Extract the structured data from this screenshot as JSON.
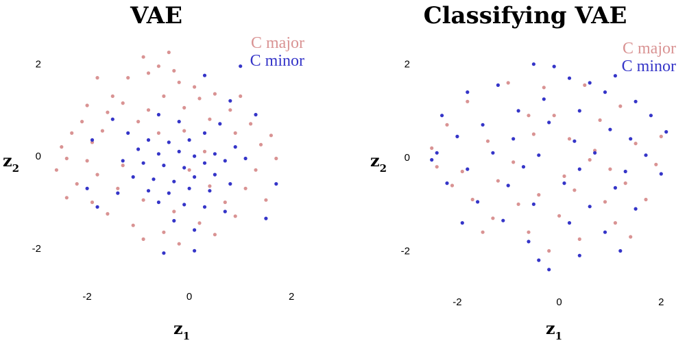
{
  "chart_data": [
    {
      "type": "scatter",
      "title": "VAE",
      "xlabel": "z",
      "xlabel_sub": "1",
      "ylabel": "z",
      "ylabel_sub": "2",
      "xlim": [
        -2.9,
        2.4
      ],
      "ylim": [
        -2.55,
        2.45
      ],
      "xticks": [
        -2,
        0,
        2
      ],
      "yticks": [
        -2,
        0,
        2
      ],
      "grid": false,
      "legend_position": "top-right",
      "series": [
        {
          "name": "C major",
          "color": "#d99393",
          "points": [
            [
              -0.4,
              2.25
            ],
            [
              -0.9,
              2.15
            ],
            [
              -0.6,
              1.95
            ],
            [
              -0.8,
              1.8
            ],
            [
              -0.3,
              1.85
            ],
            [
              -1.2,
              1.7
            ],
            [
              -1.8,
              1.7
            ],
            [
              -0.2,
              1.6
            ],
            [
              0.1,
              1.5
            ],
            [
              -1.5,
              1.3
            ],
            [
              0.5,
              1.35
            ],
            [
              -0.5,
              1.3
            ],
            [
              0.2,
              1.25
            ],
            [
              -2.0,
              1.1
            ],
            [
              1.0,
              1.3
            ],
            [
              -1.3,
              1.15
            ],
            [
              -0.1,
              1.05
            ],
            [
              0.8,
              1.0
            ],
            [
              -1.6,
              0.95
            ],
            [
              -0.8,
              1.0
            ],
            [
              -2.1,
              0.75
            ],
            [
              -1.0,
              0.75
            ],
            [
              0.4,
              0.8
            ],
            [
              1.2,
              0.7
            ],
            [
              -2.3,
              0.5
            ],
            [
              -1.7,
              0.55
            ],
            [
              0.9,
              0.5
            ],
            [
              1.6,
              0.45
            ],
            [
              -2.5,
              0.2
            ],
            [
              -1.9,
              0.3
            ],
            [
              1.4,
              0.25
            ],
            [
              -2.4,
              -0.05
            ],
            [
              -2.0,
              -0.1
            ],
            [
              1.7,
              -0.05
            ],
            [
              -2.6,
              -0.3
            ],
            [
              -1.8,
              -0.4
            ],
            [
              1.3,
              -0.3
            ],
            [
              -2.2,
              -0.6
            ],
            [
              -1.4,
              -0.7
            ],
            [
              0.4,
              -0.65
            ],
            [
              1.1,
              -0.7
            ],
            [
              -2.4,
              -0.9
            ],
            [
              -1.9,
              -1.0
            ],
            [
              -0.9,
              -0.95
            ],
            [
              0.7,
              -1.0
            ],
            [
              1.5,
              -0.95
            ],
            [
              -1.6,
              -1.25
            ],
            [
              -0.3,
              -1.2
            ],
            [
              0.9,
              -1.3
            ],
            [
              -1.1,
              -1.5
            ],
            [
              0.2,
              -1.45
            ],
            [
              -0.5,
              -1.65
            ],
            [
              0.5,
              -1.7
            ],
            [
              -0.2,
              -1.9
            ],
            [
              -0.9,
              -1.8
            ],
            [
              -1.3,
              -0.2
            ],
            [
              -0.6,
              0.5
            ],
            [
              0.0,
              -0.3
            ],
            [
              0.3,
              0.1
            ],
            [
              -0.1,
              0.55
            ]
          ]
        },
        {
          "name": "C minor",
          "color": "#3535c8",
          "points": [
            [
              1.0,
              1.95
            ],
            [
              0.3,
              1.75
            ],
            [
              -0.6,
              0.9
            ],
            [
              -0.2,
              0.75
            ],
            [
              0.6,
              0.7
            ],
            [
              -1.2,
              0.5
            ],
            [
              -0.8,
              0.35
            ],
            [
              -0.4,
              0.3
            ],
            [
              0.0,
              0.35
            ],
            [
              0.3,
              0.5
            ],
            [
              -1.0,
              0.15
            ],
            [
              -0.6,
              0.05
            ],
            [
              -0.2,
              0.1
            ],
            [
              0.1,
              0.0
            ],
            [
              0.5,
              0.05
            ],
            [
              0.9,
              0.2
            ],
            [
              -1.3,
              -0.1
            ],
            [
              -0.9,
              -0.15
            ],
            [
              -0.5,
              -0.2
            ],
            [
              -0.1,
              -0.25
            ],
            [
              0.3,
              -0.15
            ],
            [
              0.7,
              -0.1
            ],
            [
              1.1,
              -0.05
            ],
            [
              -1.1,
              -0.45
            ],
            [
              -0.7,
              -0.5
            ],
            [
              -0.3,
              -0.55
            ],
            [
              0.1,
              -0.45
            ],
            [
              0.5,
              -0.4
            ],
            [
              -0.8,
              -0.75
            ],
            [
              -0.4,
              -0.8
            ],
            [
              0.0,
              -0.7
            ],
            [
              0.4,
              -0.75
            ],
            [
              0.8,
              -0.6
            ],
            [
              -0.6,
              -1.0
            ],
            [
              -0.1,
              -1.05
            ],
            [
              0.3,
              -1.1
            ],
            [
              0.7,
              -1.2
            ],
            [
              -1.8,
              -1.1
            ],
            [
              -0.3,
              -1.4
            ],
            [
              0.1,
              -1.6
            ],
            [
              -0.5,
              -2.1
            ],
            [
              0.1,
              -2.05
            ],
            [
              -2.0,
              -0.7
            ],
            [
              1.5,
              -1.35
            ],
            [
              1.7,
              -0.6
            ],
            [
              -1.5,
              0.8
            ],
            [
              0.8,
              1.2
            ],
            [
              -1.9,
              0.35
            ],
            [
              1.3,
              0.9
            ],
            [
              -1.4,
              -0.8
            ]
          ]
        }
      ]
    },
    {
      "type": "scatter",
      "title": "Classifying VAE",
      "xlabel": "z",
      "xlabel_sub": "1",
      "ylabel": "z",
      "ylabel_sub": "2",
      "xlim": [
        -2.9,
        2.4
      ],
      "ylim": [
        -2.55,
        2.45
      ],
      "xticks": [
        -2,
        0,
        2
      ],
      "yticks": [
        -2,
        0,
        2
      ],
      "grid": false,
      "legend_position": "top-right",
      "series": [
        {
          "name": "C major",
          "color": "#d99393",
          "points": [
            [
              -1.0,
              1.6
            ],
            [
              -0.3,
              1.5
            ],
            [
              0.5,
              1.55
            ],
            [
              -1.8,
              1.2
            ],
            [
              1.2,
              1.1
            ],
            [
              -2.2,
              0.7
            ],
            [
              -0.6,
              0.9
            ],
            [
              0.8,
              0.8
            ],
            [
              2.0,
              0.45
            ],
            [
              -2.5,
              0.2
            ],
            [
              -1.4,
              0.35
            ],
            [
              0.2,
              0.4
            ],
            [
              1.5,
              0.3
            ],
            [
              -2.4,
              -0.2
            ],
            [
              -0.9,
              -0.1
            ],
            [
              0.6,
              -0.05
            ],
            [
              1.9,
              -0.15
            ],
            [
              -2.1,
              -0.6
            ],
            [
              -1.2,
              -0.5
            ],
            [
              0.1,
              -0.4
            ],
            [
              1.3,
              -0.55
            ],
            [
              -1.7,
              -0.9
            ],
            [
              -0.4,
              -0.8
            ],
            [
              0.9,
              -0.95
            ],
            [
              1.7,
              -0.9
            ],
            [
              -1.3,
              -1.3
            ],
            [
              0.0,
              -1.25
            ],
            [
              1.1,
              -1.4
            ],
            [
              -0.6,
              -1.6
            ],
            [
              0.4,
              -1.75
            ],
            [
              -0.2,
              -2.0
            ],
            [
              1.4,
              -1.7
            ],
            [
              -1.5,
              -1.6
            ],
            [
              0.7,
              0.15
            ],
            [
              -0.5,
              0.5
            ],
            [
              -1.9,
              -0.3
            ],
            [
              0.3,
              -0.7
            ],
            [
              -0.1,
              0.9
            ],
            [
              1.0,
              -0.25
            ],
            [
              -0.8,
              -1.0
            ]
          ]
        },
        {
          "name": "C minor",
          "color": "#3535c8",
          "points": [
            [
              -0.5,
              2.0
            ],
            [
              1.1,
              1.75
            ],
            [
              0.2,
              1.7
            ],
            [
              -1.2,
              1.55
            ],
            [
              0.9,
              1.4
            ],
            [
              -1.8,
              1.4
            ],
            [
              -0.3,
              1.25
            ],
            [
              1.5,
              1.2
            ],
            [
              -2.3,
              0.9
            ],
            [
              -0.8,
              1.0
            ],
            [
              0.4,
              1.0
            ],
            [
              1.8,
              0.9
            ],
            [
              -1.5,
              0.7
            ],
            [
              -0.2,
              0.75
            ],
            [
              1.0,
              0.6
            ],
            [
              2.1,
              0.55
            ],
            [
              -2.0,
              0.45
            ],
            [
              -0.9,
              0.4
            ],
            [
              0.3,
              0.35
            ],
            [
              1.4,
              0.4
            ],
            [
              -2.4,
              0.1
            ],
            [
              -1.3,
              0.1
            ],
            [
              -0.4,
              0.05
            ],
            [
              0.7,
              0.1
            ],
            [
              1.7,
              0.05
            ],
            [
              -1.8,
              -0.25
            ],
            [
              -0.7,
              -0.2
            ],
            [
              0.4,
              -0.25
            ],
            [
              1.3,
              -0.3
            ],
            [
              -2.2,
              -0.55
            ],
            [
              -1.0,
              -0.6
            ],
            [
              0.1,
              -0.55
            ],
            [
              1.1,
              -0.65
            ],
            [
              -1.6,
              -0.95
            ],
            [
              -0.5,
              -1.0
            ],
            [
              0.6,
              -1.05
            ],
            [
              1.5,
              -1.1
            ],
            [
              -1.1,
              -1.35
            ],
            [
              0.2,
              -1.4
            ],
            [
              0.9,
              -1.6
            ],
            [
              -0.6,
              -1.8
            ],
            [
              0.4,
              -2.1
            ],
            [
              -0.2,
              -2.4
            ],
            [
              -0.4,
              -2.2
            ],
            [
              1.2,
              -2.0
            ],
            [
              -1.9,
              -1.4
            ],
            [
              2.0,
              -0.35
            ],
            [
              -2.5,
              -0.05
            ],
            [
              -0.1,
              1.95
            ],
            [
              0.6,
              1.6
            ]
          ]
        }
      ]
    }
  ]
}
